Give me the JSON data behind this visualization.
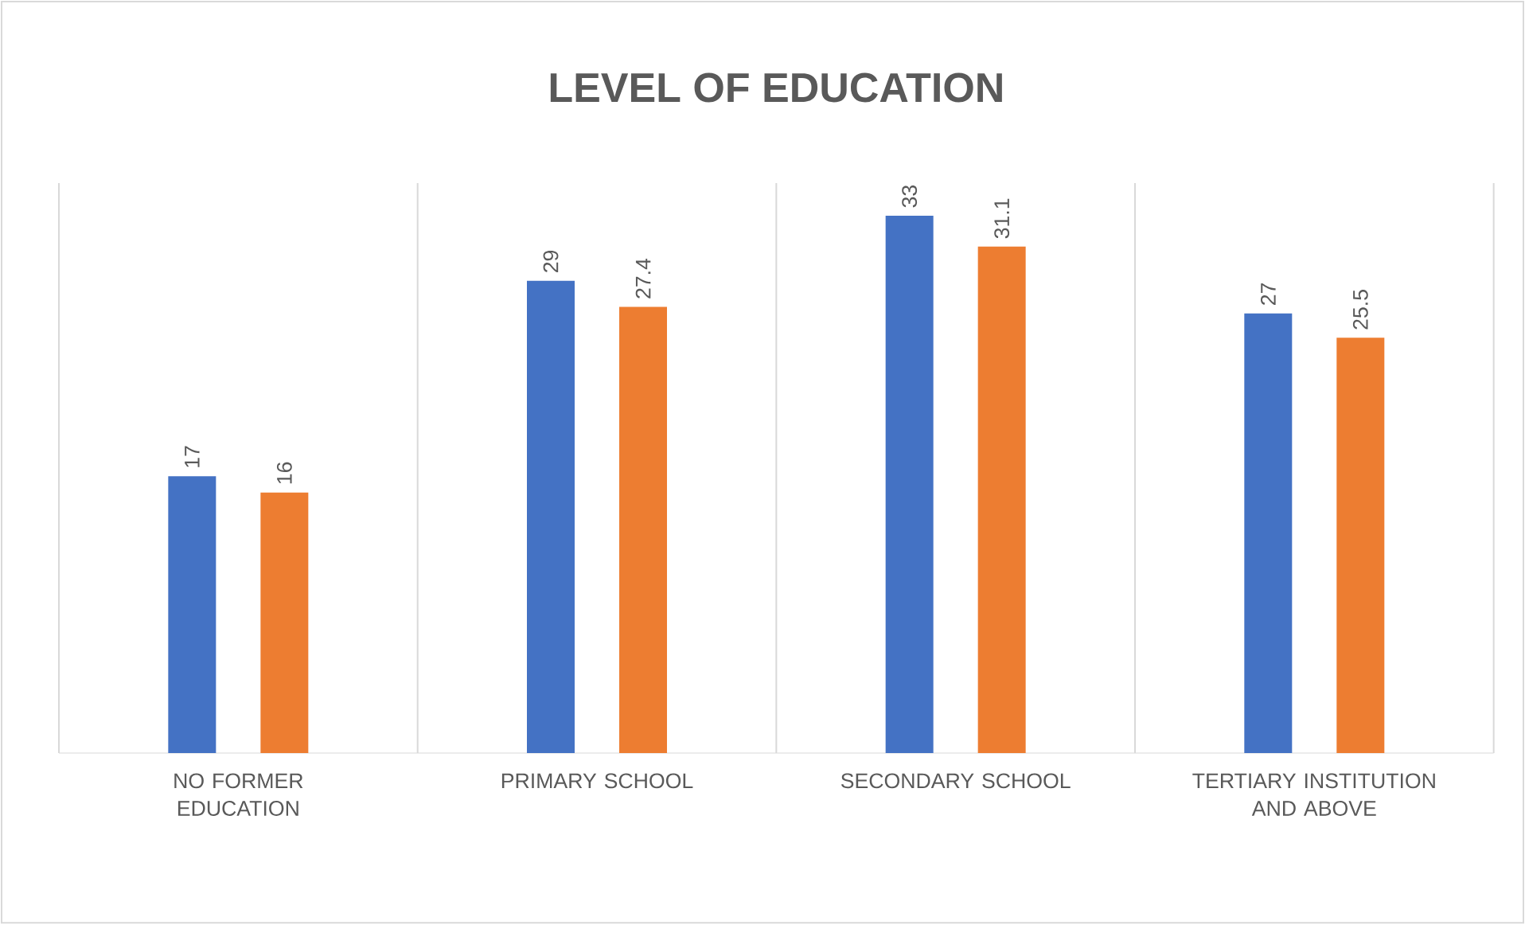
{
  "chart_data": {
    "type": "bar",
    "title": "LEVEL OF EDUCATION",
    "categories": [
      "NO FORMER EDUCATION",
      "PRIMARY SCHOOL",
      "SECONDARY SCHOOL",
      "TERTIARY INSTITUTION AND ABOVE"
    ],
    "series": [
      {
        "color": "#4472c4",
        "values": [
          17,
          29,
          33,
          27
        ]
      },
      {
        "color": "#ed7d31",
        "values": [
          16,
          27.4,
          31.1,
          25.5
        ]
      }
    ],
    "ylim": [
      0,
      35
    ],
    "data_labels": true,
    "grid": "x"
  }
}
